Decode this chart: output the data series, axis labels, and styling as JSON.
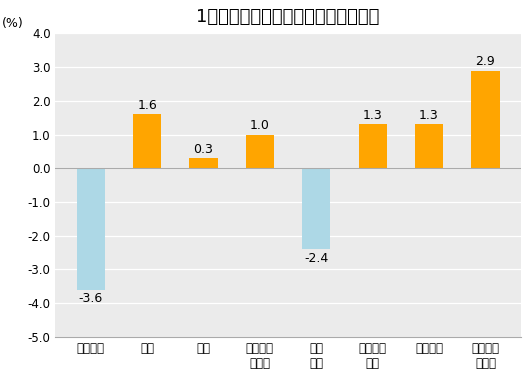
{
  "title": "1月份居民消费价格分类别同比涨跌幅",
  "ylabel": "(%)",
  "categories": [
    "食品烟酒",
    "衣着",
    "居住",
    "生活用品\n及服务",
    "交通\n通信",
    "教育文化\n娱乐",
    "医疗保健",
    "其他用品\n及服务"
  ],
  "values": [
    -3.6,
    1.6,
    0.3,
    1.0,
    -2.4,
    1.3,
    1.3,
    2.9
  ],
  "bar_color_positive": "#FFA500",
  "bar_color_negative": "#ADD8E6",
  "ylim": [
    -5.0,
    4.0
  ],
  "yticks": [
    -5.0,
    -4.0,
    -3.0,
    -2.0,
    -1.0,
    0.0,
    1.0,
    2.0,
    3.0,
    4.0
  ],
  "ytick_labels": [
    "-5.0",
    "-4.0",
    "-3.0",
    "-2.0",
    "-1.0",
    "0.0",
    "1.0",
    "2.0",
    "3.0",
    "4.0"
  ],
  "background_color": "#ffffff",
  "plot_bg_color": "#ebebeb",
  "title_fontsize": 13,
  "label_fontsize": 9,
  "tick_fontsize": 8.5,
  "ylabel_fontsize": 9,
  "bar_width": 0.5
}
